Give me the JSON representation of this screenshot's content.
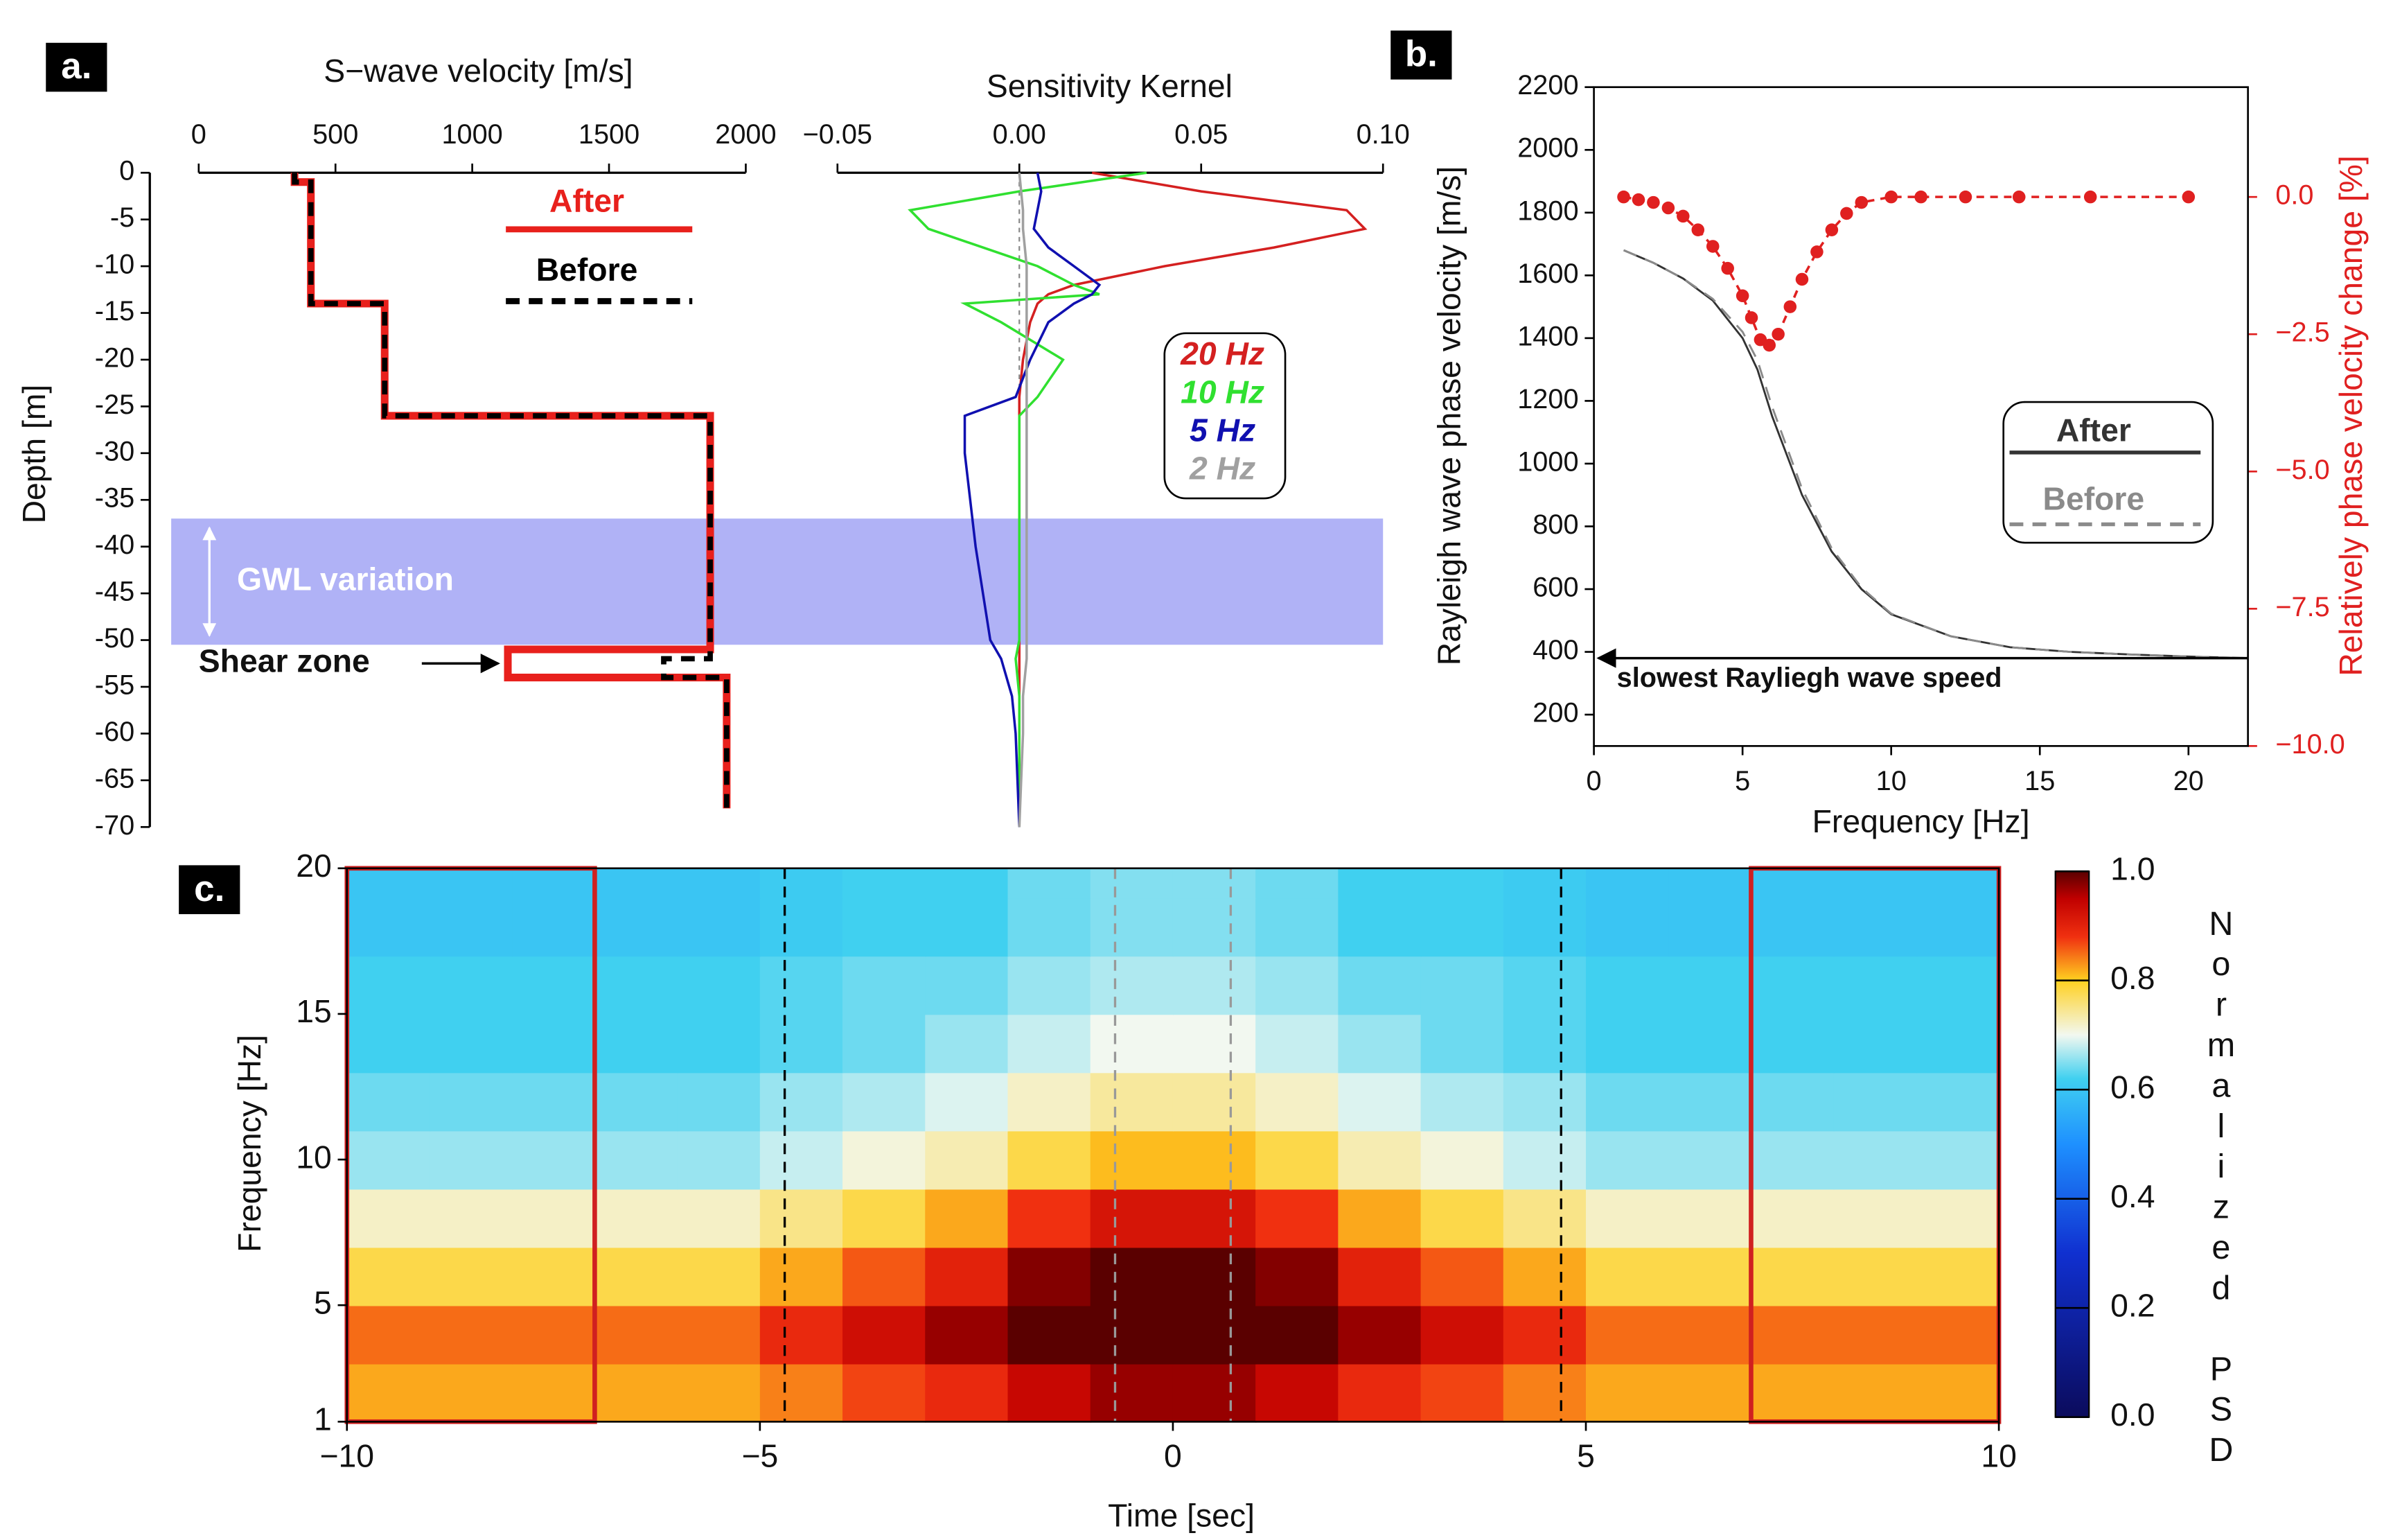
{
  "chart_data": [
    {
      "type": "line",
      "panel_label": "a.",
      "title": "S−wave velocity [m/s]",
      "y_label": "Depth [m]",
      "x_axis": "top",
      "xlim": [
        0,
        2000
      ],
      "xticks": [
        0,
        500,
        1000,
        1500,
        2000
      ],
      "ylim": [
        -70,
        0
      ],
      "yticks": [
        0,
        -5,
        -10,
        -15,
        -20,
        -25,
        -30,
        -35,
        -40,
        -45,
        -50,
        -55,
        -60,
        -65,
        -70
      ],
      "series": [
        {
          "name": "After",
          "color": "#e8201c",
          "style": "solid",
          "x": [
            350,
            350,
            410,
            410,
            680,
            680,
            1870,
            1870,
            1130,
            1130,
            1930,
            1930
          ],
          "values": [
            0,
            -1,
            -1,
            -14,
            -14,
            -26,
            -26,
            -51,
            -51,
            -54,
            -54,
            -68
          ]
        },
        {
          "name": "Before",
          "color": "#000000",
          "style": "dashed",
          "x": [
            350,
            350,
            410,
            410,
            680,
            680,
            1870,
            1870,
            1700,
            1700,
            1930,
            1930
          ],
          "values": [
            0,
            -1,
            -1,
            -14,
            -14,
            -26,
            -26,
            -52,
            -52,
            -54,
            -54,
            -68
          ]
        }
      ],
      "band": {
        "text": "GWL variation",
        "range": [
          -37,
          -50.5
        ],
        "color": "#b0b2f6"
      },
      "arrow": {
        "text": "Shear zone",
        "y": -52.5
      }
    },
    {
      "type": "line",
      "title": "Sensitivity Kernel",
      "x_axis": "top",
      "xlim": [
        -0.05,
        0.1
      ],
      "xticks": [
        {
          "value": -0.05,
          "label": "−0.05"
        },
        {
          "value": 0,
          "label": "0.00"
        },
        0.05,
        {
          "value": 0.1,
          "label": "0.10"
        }
      ],
      "ylim": [
        -70,
        0
      ],
      "series": [
        {
          "name": "20 Hz",
          "color": "#d42020",
          "style": "solid",
          "x": [
            0.02,
            0.05,
            0.09,
            0.095,
            0.07,
            0.04,
            0.015,
            0.008,
            0.005,
            0.003,
            0.001,
            0,
            0,
            0,
            0,
            0,
            0,
            0,
            0,
            0
          ],
          "values": [
            0,
            -2,
            -4,
            -6,
            -8,
            -10,
            -12,
            -13,
            -14,
            -16,
            -20,
            -24,
            -26,
            -30,
            -40,
            -50,
            -52,
            -56,
            -60,
            -70
          ]
        },
        {
          "name": "10 Hz",
          "color": "#30e030",
          "style": "solid",
          "x": [
            0.035,
            0,
            -0.03,
            -0.025,
            -0.01,
            0.005,
            0.015,
            0.022,
            -0.015,
            -0.005,
            0.012,
            0.005,
            0,
            0,
            0,
            0,
            -0.001,
            0,
            0,
            0
          ],
          "values": [
            0,
            -2,
            -4,
            -6,
            -8,
            -10,
            -12,
            -13,
            -14,
            -16,
            -20,
            -24,
            -26,
            -30,
            -40,
            -50,
            -52,
            -56,
            -60,
            -70
          ]
        },
        {
          "name": "5 Hz",
          "color": "#1010b0",
          "style": "solid",
          "x": [
            0.005,
            0.006,
            0.005,
            0.004,
            0.008,
            0.015,
            0.022,
            0.02,
            0.015,
            0.008,
            0.003,
            -0.001,
            -0.015,
            -0.015,
            -0.012,
            -0.008,
            -0.005,
            -0.002,
            -0.001,
            0
          ],
          "values": [
            0,
            -2,
            -4,
            -6,
            -8,
            -10,
            -12,
            -13,
            -14,
            -16,
            -20,
            -24,
            -26,
            -30,
            -40,
            -50,
            -52,
            -56,
            -60,
            -70
          ]
        },
        {
          "name": "2 Hz",
          "color": "#a0a0a0",
          "style": "solid",
          "x": [
            0,
            0.0005,
            0.001,
            0.001,
            0.0015,
            0.002,
            0.002,
            0.002,
            0.002,
            0.002,
            0.002,
            0.002,
            0.002,
            0.002,
            0.002,
            0.002,
            0.002,
            0.001,
            0.001,
            0
          ],
          "values": [
            0,
            -2,
            -4,
            -6,
            -8,
            -10,
            -12,
            -13,
            -14,
            -16,
            -20,
            -24,
            -26,
            -30,
            -40,
            -50,
            -52,
            -56,
            -60,
            -70
          ]
        }
      ]
    },
    {
      "type": "line",
      "panel_label": "b.",
      "x_label": "Frequency [Hz]",
      "y_label": "Rayleigh wave phase velocity [m/s]",
      "y2_label": "Relatively phase velocity change [%]",
      "y2_color": "#e02020",
      "frame": true,
      "xlim": [
        0,
        22
      ],
      "xticks": [
        0,
        5,
        10,
        15,
        20
      ],
      "ylim": [
        100,
        2200
      ],
      "yticks": [
        200,
        400,
        600,
        800,
        1000,
        1200,
        1400,
        1600,
        1800,
        2000,
        2200
      ],
      "y2lim": [
        -10,
        2
      ],
      "y2ticks": [
        {
          "value": 0,
          "label": "0.0"
        },
        {
          "value": -2.5,
          "label": "−2.5"
        },
        {
          "value": -5,
          "label": "−5.0"
        },
        {
          "value": -7.5,
          "label": "−7.5"
        },
        {
          "value": -10,
          "label": "−10.0"
        }
      ],
      "series": [
        {
          "name": "After",
          "color": "#333333",
          "style": "solid",
          "x": [
            1,
            2,
            3,
            4,
            5,
            5.5,
            6,
            7,
            8,
            9,
            10,
            12,
            14,
            16,
            18,
            20,
            22
          ],
          "values": [
            1680,
            1640,
            1590,
            1520,
            1400,
            1300,
            1150,
            900,
            720,
            600,
            520,
            450,
            415,
            400,
            392,
            385,
            380
          ]
        },
        {
          "name": "Before",
          "color": "#8a8a8a",
          "style": "dashed",
          "x": [
            1,
            2,
            3,
            4,
            5,
            5.5,
            6,
            7,
            8,
            9,
            10,
            12,
            14,
            16,
            18,
            20,
            22
          ],
          "values": [
            1680,
            1640,
            1590,
            1525,
            1420,
            1330,
            1180,
            920,
            730,
            605,
            522,
            450,
            415,
            400,
            392,
            385,
            380
          ]
        },
        {
          "color": "#e02020",
          "style": "dotted",
          "marker": true,
          "axis": "y2",
          "x": [
            1,
            1.5,
            2,
            2.5,
            3,
            3.5,
            4,
            4.5,
            5,
            5.3,
            5.6,
            5.9,
            6.2,
            6.6,
            7,
            7.5,
            8,
            8.5,
            9,
            10,
            11,
            12.5,
            14.3,
            16.7,
            20
          ],
          "values": [
            0,
            -0.05,
            -0.1,
            -0.2,
            -0.35,
            -0.6,
            -0.9,
            -1.3,
            -1.8,
            -2.2,
            -2.6,
            -2.7,
            -2.5,
            -2,
            -1.5,
            -1,
            -0.6,
            -0.3,
            -0.1,
            0,
            0,
            0,
            0,
            0,
            0
          ]
        }
      ],
      "arrow": {
        "text": "slowest Rayliegh wave speed",
        "y": 380
      }
    },
    {
      "type": "heatmap",
      "panel_label": "c.",
      "x_label": "Time [sec]",
      "y_label": "Frequency [Hz]",
      "xlim": [
        -10,
        10
      ],
      "xticks": [
        {
          "value": -10,
          "label": "−10"
        },
        {
          "value": -5,
          "label": "−5"
        },
        0,
        5,
        10
      ],
      "ylim": [
        1,
        20
      ],
      "yticks": [
        1,
        5,
        10,
        15,
        20
      ],
      "xbins": [
        -10,
        -9,
        -8,
        -7,
        -6,
        -5,
        -4,
        -3,
        -2,
        -1,
        0,
        1,
        2,
        3,
        4,
        5,
        6,
        7,
        8,
        9,
        10
      ],
      "ybins": [
        1,
        3,
        5,
        7,
        9,
        11,
        13,
        15,
        17,
        19,
        20
      ],
      "z": [
        [
          0.82,
          0.82,
          0.82,
          0.82,
          0.82,
          0.84,
          0.87,
          0.89,
          0.94,
          0.97,
          0.97,
          0.94,
          0.89,
          0.87,
          0.84,
          0.82,
          0.82,
          0.82,
          0.82,
          0.82
        ],
        [
          0.85,
          0.85,
          0.85,
          0.85,
          0.85,
          0.89,
          0.93,
          0.97,
          1,
          1,
          1,
          1,
          0.97,
          0.93,
          0.89,
          0.85,
          0.85,
          0.85,
          0.85,
          0.85
        ],
        [
          0.78,
          0.78,
          0.78,
          0.78,
          0.78,
          0.82,
          0.86,
          0.9,
          0.98,
          1,
          1,
          0.98,
          0.9,
          0.86,
          0.82,
          0.78,
          0.78,
          0.78,
          0.78,
          0.78
        ],
        [
          0.72,
          0.72,
          0.72,
          0.72,
          0.72,
          0.75,
          0.78,
          0.82,
          0.88,
          0.92,
          0.92,
          0.88,
          0.82,
          0.78,
          0.75,
          0.72,
          0.72,
          0.72,
          0.72,
          0.72
        ],
        [
          0.66,
          0.66,
          0.66,
          0.66,
          0.66,
          0.68,
          0.71,
          0.73,
          0.78,
          0.81,
          0.81,
          0.78,
          0.73,
          0.71,
          0.68,
          0.66,
          0.66,
          0.66,
          0.66,
          0.66
        ],
        [
          0.64,
          0.64,
          0.64,
          0.64,
          0.64,
          0.66,
          0.67,
          0.69,
          0.72,
          0.74,
          0.74,
          0.72,
          0.69,
          0.67,
          0.66,
          0.64,
          0.64,
          0.64,
          0.64,
          0.64
        ],
        [
          0.62,
          0.62,
          0.62,
          0.62,
          0.62,
          0.63,
          0.64,
          0.66,
          0.68,
          0.7,
          0.7,
          0.68,
          0.66,
          0.64,
          0.63,
          0.62,
          0.62,
          0.62,
          0.62,
          0.62
        ],
        [
          0.62,
          0.62,
          0.62,
          0.62,
          0.62,
          0.63,
          0.64,
          0.64,
          0.66,
          0.67,
          0.67,
          0.66,
          0.64,
          0.64,
          0.63,
          0.62,
          0.62,
          0.62,
          0.62,
          0.62
        ],
        [
          0.6,
          0.6,
          0.6,
          0.6,
          0.6,
          0.61,
          0.62,
          0.62,
          0.64,
          0.65,
          0.65,
          0.64,
          0.62,
          0.62,
          0.61,
          0.6,
          0.6,
          0.6,
          0.6,
          0.6
        ],
        [
          0.6,
          0.6,
          0.6,
          0.6,
          0.6,
          0.61,
          0.62,
          0.62,
          0.64,
          0.65,
          0.65,
          0.64,
          0.62,
          0.62,
          0.61,
          0.6,
          0.6,
          0.6,
          0.6,
          0.6
        ]
      ],
      "colorscale": [
        [
          0,
          "#0b0b5c"
        ],
        [
          0.3,
          "#1030d0"
        ],
        [
          0.5,
          "#1e90ff"
        ],
        [
          0.62,
          "#40d0f0"
        ],
        [
          0.7,
          "#f2f8f0"
        ],
        [
          0.8,
          "#ffd020"
        ],
        [
          0.88,
          "#f03010"
        ],
        [
          0.95,
          "#c00000"
        ],
        [
          1,
          "#5a0000"
        ]
      ],
      "clim": [
        0,
        1
      ],
      "colorbar_ticks": [
        {
          "value": 0,
          "label": "0.0"
        },
        0.2,
        0.4,
        0.6,
        0.8,
        {
          "value": 1,
          "label": "1.0"
        }
      ],
      "colorbar_label": "Normalized PSD",
      "boxes": [
        [
          -10,
          -7
        ],
        [
          7,
          10
        ]
      ],
      "box_color": "#d02020",
      "vlines": [
        {
          "x": -4.7,
          "color": "#000000"
        },
        {
          "x": -0.7,
          "color": "#999999"
        },
        {
          "x": 0.7,
          "color": "#999999"
        },
        {
          "x": 4.7,
          "color": "#000000"
        }
      ]
    }
  ]
}
